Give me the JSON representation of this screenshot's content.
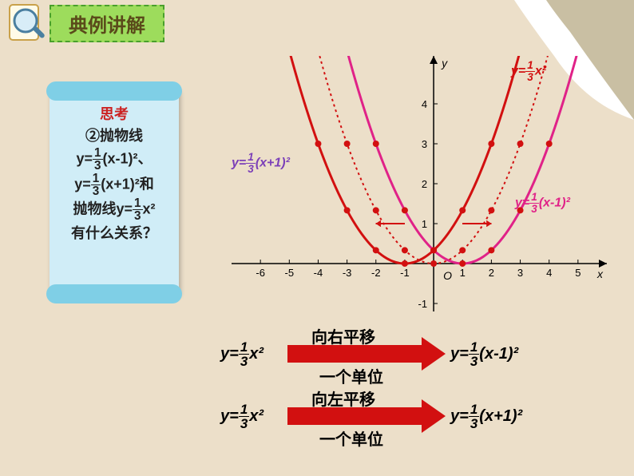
{
  "header": {
    "title": "典例讲解"
  },
  "scroll": {
    "title": "思考",
    "line1_prefix": "②抛物线",
    "eq1_lhs": "y=",
    "eq1_frac_num": "1",
    "eq1_frac_den": "3",
    "eq1_rhs": "(x-1)²",
    "eq1_tail": "、",
    "eq2_lhs": "y=",
    "eq2_frac_num": "1",
    "eq2_frac_den": "3",
    "eq2_rhs": "(x+1)²",
    "eq2_tail": "和",
    "line4_prefix": "抛物线",
    "eq3_lhs": "y=",
    "eq3_frac_num": "1",
    "eq3_frac_den": "3",
    "eq3_rhs": "x²",
    "question": "有什么关系？"
  },
  "chart": {
    "type": "line-parabolas",
    "x_range": [
      -7,
      6
    ],
    "y_range": [
      -1.2,
      5.2
    ],
    "x_ticks": [
      -6,
      -5,
      -4,
      -3,
      -2,
      -1,
      1,
      2,
      3,
      4,
      5
    ],
    "y_ticks": [
      -1,
      1,
      2,
      3,
      4
    ],
    "x_axis_label": "x",
    "y_axis_label": "y",
    "origin_label": "O",
    "axes_color": "#000000",
    "grid_color": "#888888",
    "background_color": "#ecdfc9",
    "series": [
      {
        "id": "center",
        "formula": "y=(1/3)x^2",
        "vertex": [
          0,
          0
        ],
        "color": "#d21010",
        "style": "dotted",
        "line_width": 2,
        "marker": "circle",
        "marker_color": "#d21010",
        "marker_size": 4,
        "label_color": "#d21010"
      },
      {
        "id": "left",
        "formula": "y=(1/3)(x+1)^2",
        "vertex": [
          -1,
          0
        ],
        "color": "#d21010",
        "style": "solid",
        "line_width": 3,
        "marker": "circle",
        "marker_color": "#d21010",
        "marker_size": 4,
        "label_color": "#7b3fb8"
      },
      {
        "id": "right",
        "formula": "y=(1/3)(x-1)^2",
        "vertex": [
          1,
          0
        ],
        "color": "#e02288",
        "style": "solid",
        "line_width": 3,
        "marker": "circle",
        "marker_color": "#d21010",
        "marker_size": 4,
        "label_color": "#e02288"
      }
    ],
    "shift_arrows": {
      "color": "#d21010",
      "width": 2,
      "y": 1,
      "span": 1
    },
    "label_left": {
      "text_lhs": "y=",
      "frac_num": "1",
      "frac_den": "3",
      "text_rhs": "(x+1)²"
    },
    "label_right": {
      "text_lhs": "y=",
      "frac_num": "1",
      "frac_den": "3",
      "text_rhs": "(x-1)²"
    },
    "label_center": {
      "text_lhs": "y=",
      "frac_num": "1",
      "frac_den": "3",
      "text_rhs": "x²"
    }
  },
  "transforms": {
    "arrow_color": "#d21010",
    "t1": {
      "from_lhs": "y=",
      "from_num": "1",
      "from_den": "3",
      "from_rhs": "x²",
      "to_lhs": "y=",
      "to_num": "1",
      "to_den": "3",
      "to_rhs": "(x-1)²",
      "top_label": "向右平移",
      "bottom_label": "一个单位"
    },
    "t2": {
      "from_lhs": "y=",
      "from_num": "1",
      "from_den": "3",
      "from_rhs": "x²",
      "to_lhs": "y=",
      "to_num": "1",
      "to_den": "3",
      "to_rhs": "(x+1)²",
      "top_label": "向左平移",
      "bottom_label": "一个单位"
    }
  },
  "colors": {
    "page_bg": "#ecdfc9",
    "header_bg": "#9ddc5c",
    "header_border": "#4aa02c",
    "scroll_bg": "#d0edf7",
    "scroll_roll": "#7fcfe6",
    "title_text": "#cc2222"
  }
}
